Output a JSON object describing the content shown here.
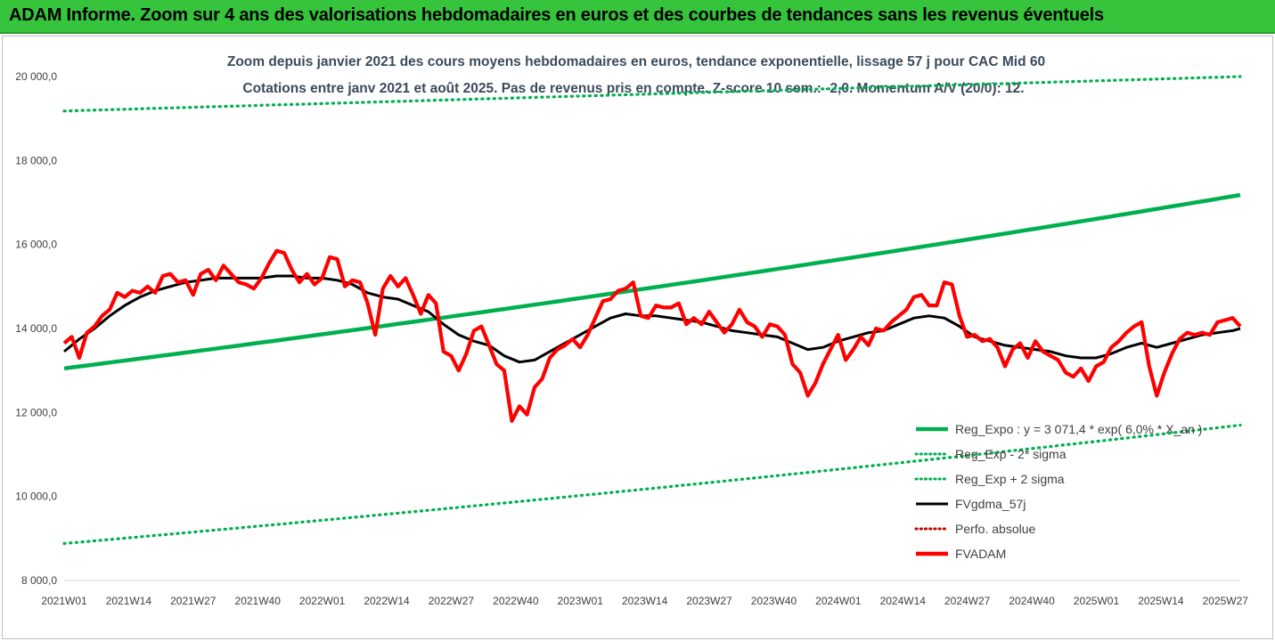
{
  "banner": {
    "title": "ADAM Informe. Zoom sur 4 ans des valorisations hebdomadaires en euros et des courbes de tendances sans les revenus éventuels"
  },
  "chart_data": {
    "type": "line",
    "title_line1": "Zoom depuis janvier 2021 des cours moyens hebdomadaires en euros, tendance exponentielle, lissage 57 j pour CAC Mid 60",
    "title_line2": "Cotations entre janv 2021 et août 2025.  Pas de revenus pris en compte. Z-score 10 sem.: -2,0. Momentum A/V (20/0): 12.",
    "ylim": [
      8000,
      20000
    ],
    "y_ticks": [
      "8 000,0",
      "10 000,0",
      "12 000,0",
      "14 000,0",
      "16 000,0",
      "18 000,0",
      "20 000,0"
    ],
    "y_tick_values": [
      8000,
      10000,
      12000,
      14000,
      16000,
      18000,
      20000
    ],
    "x_ticks": [
      "2021W01",
      "2021W14",
      "2021W27",
      "2021W40",
      "2022W01",
      "2022W14",
      "2022W27",
      "2022W40",
      "2023W01",
      "2023W14",
      "2023W27",
      "2023W40",
      "2024W01",
      "2024W14",
      "2024W27",
      "2024W40",
      "2025W01",
      "2025W14",
      "2025W27"
    ],
    "x_tick_index": [
      0,
      13,
      26,
      39,
      52,
      65,
      78,
      91,
      104,
      117,
      130,
      143,
      156,
      169,
      182,
      195,
      208,
      221,
      234
    ],
    "n_weeks": 238,
    "trend": {
      "start": 13050,
      "end": 17180
    },
    "trend_minus": {
      "start": 8880,
      "end": 11700
    },
    "trend_plus": {
      "start": 19180,
      "end": 20000
    },
    "fvadam_anchors": [
      [
        0,
        13650
      ],
      [
        2,
        13800
      ],
      [
        4,
        13300
      ],
      [
        6,
        13900
      ],
      [
        8,
        14050
      ],
      [
        10,
        14300
      ],
      [
        12,
        14450
      ],
      [
        14,
        14850
      ],
      [
        16,
        14750
      ],
      [
        18,
        14900
      ],
      [
        20,
        14850
      ],
      [
        22,
        15000
      ],
      [
        24,
        14850
      ],
      [
        26,
        15250
      ],
      [
        28,
        15300
      ],
      [
        30,
        15100
      ],
      [
        32,
        15150
      ],
      [
        34,
        14800
      ],
      [
        36,
        15300
      ],
      [
        38,
        15400
      ],
      [
        40,
        15150
      ],
      [
        42,
        15500
      ],
      [
        44,
        15300
      ],
      [
        46,
        15100
      ],
      [
        48,
        15050
      ],
      [
        50,
        14950
      ],
      [
        52,
        15200
      ],
      [
        54,
        15550
      ],
      [
        56,
        15850
      ],
      [
        58,
        15800
      ],
      [
        60,
        15400
      ],
      [
        62,
        15100
      ],
      [
        64,
        15300
      ],
      [
        66,
        15050
      ],
      [
        68,
        15200
      ],
      [
        70,
        15700
      ],
      [
        72,
        15650
      ],
      [
        74,
        15000
      ],
      [
        76,
        15150
      ],
      [
        78,
        15100
      ],
      [
        80,
        14600
      ],
      [
        82,
        13850
      ],
      [
        84,
        14950
      ],
      [
        86,
        15250
      ],
      [
        88,
        15000
      ],
      [
        90,
        15200
      ],
      [
        92,
        14800
      ],
      [
        94,
        14350
      ],
      [
        96,
        14800
      ],
      [
        98,
        14600
      ],
      [
        100,
        13450
      ],
      [
        102,
        13350
      ],
      [
        104,
        13000
      ],
      [
        106,
        13400
      ],
      [
        108,
        13950
      ],
      [
        110,
        14050
      ],
      [
        112,
        13600
      ],
      [
        114,
        13150
      ],
      [
        116,
        13000
      ],
      [
        118,
        11800
      ],
      [
        120,
        12150
      ],
      [
        122,
        11950
      ],
      [
        124,
        12600
      ],
      [
        126,
        12800
      ],
      [
        128,
        13300
      ],
      [
        130,
        13500
      ],
      [
        132,
        13600
      ],
      [
        134,
        13750
      ],
      [
        136,
        13550
      ],
      [
        138,
        13850
      ],
      [
        140,
        14250
      ],
      [
        142,
        14650
      ],
      [
        144,
        14700
      ],
      [
        146,
        14900
      ],
      [
        148,
        14950
      ],
      [
        150,
        15100
      ],
      [
        152,
        14300
      ],
      [
        154,
        14250
      ],
      [
        156,
        14550
      ],
      [
        158,
        14500
      ],
      [
        160,
        14500
      ],
      [
        162,
        14600
      ],
      [
        164,
        14100
      ],
      [
        166,
        14250
      ],
      [
        168,
        14100
      ],
      [
        170,
        14400
      ],
      [
        172,
        14150
      ],
      [
        174,
        13900
      ],
      [
        176,
        14100
      ],
      [
        178,
        14450
      ],
      [
        180,
        14150
      ],
      [
        182,
        14050
      ],
      [
        184,
        13800
      ],
      [
        186,
        14100
      ],
      [
        188,
        14050
      ],
      [
        190,
        13850
      ],
      [
        192,
        13150
      ],
      [
        194,
        12950
      ],
      [
        196,
        12400
      ],
      [
        198,
        12700
      ],
      [
        200,
        13150
      ],
      [
        202,
        13500
      ],
      [
        204,
        13850
      ],
      [
        206,
        13250
      ],
      [
        208,
        13500
      ],
      [
        210,
        13800
      ],
      [
        212,
        13600
      ],
      [
        214,
        14000
      ],
      [
        216,
        13950
      ],
      [
        218,
        14150
      ],
      [
        220,
        14300
      ],
      [
        222,
        14450
      ],
      [
        224,
        14750
      ],
      [
        226,
        14800
      ],
      [
        228,
        14550
      ],
      [
        230,
        14550
      ],
      [
        232,
        15100
      ],
      [
        234,
        15050
      ],
      [
        236,
        14300
      ],
      [
        238,
        13800
      ],
      [
        240,
        13850
      ],
      [
        242,
        13700
      ],
      [
        244,
        13750
      ],
      [
        246,
        13550
      ],
      [
        248,
        13100
      ],
      [
        250,
        13500
      ],
      [
        252,
        13650
      ],
      [
        254,
        13300
      ],
      [
        256,
        13700
      ],
      [
        258,
        13450
      ],
      [
        260,
        13350
      ],
      [
        262,
        13250
      ],
      [
        264,
        12950
      ],
      [
        266,
        12850
      ],
      [
        268,
        13050
      ],
      [
        270,
        12750
      ],
      [
        272,
        13100
      ],
      [
        274,
        13200
      ],
      [
        276,
        13550
      ],
      [
        278,
        13700
      ],
      [
        280,
        13900
      ],
      [
        282,
        14050
      ],
      [
        284,
        14150
      ],
      [
        286,
        13100
      ],
      [
        288,
        12400
      ],
      [
        290,
        12950
      ],
      [
        292,
        13400
      ],
      [
        294,
        13750
      ],
      [
        296,
        13900
      ],
      [
        298,
        13850
      ],
      [
        300,
        13900
      ],
      [
        302,
        13850
      ],
      [
        304,
        14150
      ],
      [
        306,
        14200
      ],
      [
        308,
        14250
      ],
      [
        310,
        14050
      ]
    ],
    "fvgdma_anchors": [
      [
        0,
        13450
      ],
      [
        4,
        13750
      ],
      [
        8,
        14000
      ],
      [
        12,
        14300
      ],
      [
        16,
        14550
      ],
      [
        20,
        14750
      ],
      [
        24,
        14900
      ],
      [
        28,
        15000
      ],
      [
        32,
        15100
      ],
      [
        36,
        15150
      ],
      [
        40,
        15200
      ],
      [
        44,
        15200
      ],
      [
        48,
        15200
      ],
      [
        52,
        15200
      ],
      [
        56,
        15250
      ],
      [
        60,
        15250
      ],
      [
        64,
        15200
      ],
      [
        68,
        15200
      ],
      [
        72,
        15150
      ],
      [
        76,
        15050
      ],
      [
        80,
        14850
      ],
      [
        84,
        14750
      ],
      [
        88,
        14700
      ],
      [
        92,
        14550
      ],
      [
        96,
        14400
      ],
      [
        100,
        14100
      ],
      [
        104,
        13850
      ],
      [
        108,
        13700
      ],
      [
        112,
        13600
      ],
      [
        116,
        13350
      ],
      [
        120,
        13200
      ],
      [
        124,
        13250
      ],
      [
        128,
        13450
      ],
      [
        132,
        13650
      ],
      [
        136,
        13850
      ],
      [
        140,
        14050
      ],
      [
        144,
        14250
      ],
      [
        148,
        14350
      ],
      [
        152,
        14300
      ],
      [
        156,
        14300
      ],
      [
        160,
        14250
      ],
      [
        164,
        14200
      ],
      [
        168,
        14150
      ],
      [
        172,
        14050
      ],
      [
        176,
        13950
      ],
      [
        180,
        13900
      ],
      [
        184,
        13850
      ],
      [
        188,
        13800
      ],
      [
        192,
        13650
      ],
      [
        196,
        13500
      ],
      [
        200,
        13550
      ],
      [
        204,
        13700
      ],
      [
        208,
        13800
      ],
      [
        212,
        13900
      ],
      [
        216,
        13950
      ],
      [
        220,
        14100
      ],
      [
        224,
        14250
      ],
      [
        228,
        14300
      ],
      [
        232,
        14250
      ],
      [
        236,
        14050
      ],
      [
        240,
        13800
      ],
      [
        244,
        13700
      ],
      [
        248,
        13600
      ],
      [
        252,
        13550
      ],
      [
        256,
        13500
      ],
      [
        260,
        13450
      ],
      [
        264,
        13350
      ],
      [
        268,
        13300
      ],
      [
        272,
        13300
      ],
      [
        276,
        13400
      ],
      [
        280,
        13550
      ],
      [
        284,
        13650
      ],
      [
        288,
        13550
      ],
      [
        292,
        13650
      ],
      [
        296,
        13750
      ],
      [
        300,
        13850
      ],
      [
        304,
        13900
      ],
      [
        308,
        13950
      ],
      [
        310,
        14000
      ]
    ],
    "anchor_span": 310,
    "legend": [
      {
        "name": "Reg_Expo : y = 3 071,4 * exp( 6,0% * X_an )",
        "color": "#00b050",
        "style": "solid-thick"
      },
      {
        "name": "Reg_Exp - 2* sigma",
        "color": "#00b050",
        "style": "dotted"
      },
      {
        "name": "Reg_Exp + 2 sigma",
        "color": "#00b050",
        "style": "dotted"
      },
      {
        "name": "FVgdma_57j",
        "color": "#000000",
        "style": "solid"
      },
      {
        "name": "Perfo. absolue",
        "color": "#c00000",
        "style": "dotted"
      },
      {
        "name": "FVADAM",
        "color": "#ff0000",
        "style": "solid-thick"
      }
    ],
    "legend_position": "bottom-right",
    "grid": false
  }
}
